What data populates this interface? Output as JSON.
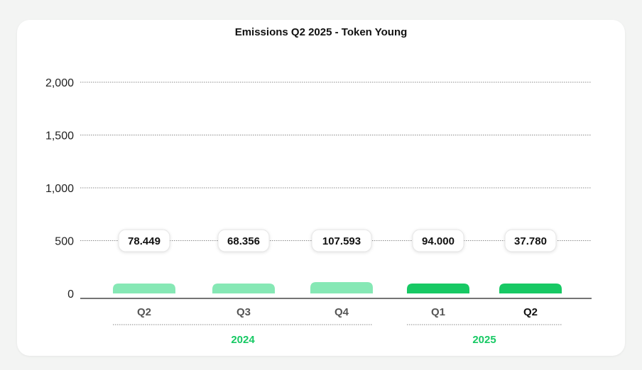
{
  "chart_data": {
    "type": "bar",
    "title": "Emissions Q2 2025 - Token Young",
    "categories": [
      "Q2",
      "Q3",
      "Q4",
      "Q1",
      "Q2"
    ],
    "values": [
      78.449,
      68.356,
      107.593,
      94.0,
      37.78
    ],
    "value_labels": [
      "78.449",
      "68.356",
      "107.593",
      "94.000",
      "37.780"
    ],
    "groups": [
      {
        "label": "2024",
        "categories": [
          0,
          1,
          2
        ]
      },
      {
        "label": "2025",
        "categories": [
          3,
          4
        ]
      }
    ],
    "yticks": [
      "0",
      "500",
      "1,000",
      "1,500",
      "2,000"
    ],
    "ytick_values": [
      0,
      500,
      1000,
      1500,
      2000
    ],
    "ylim": [
      0,
      2000
    ],
    "grid": true,
    "highlight_index": 4,
    "colors": {
      "past": "#86e8b5",
      "current_year": "#17c964",
      "group_label": "#17c964"
    }
  }
}
